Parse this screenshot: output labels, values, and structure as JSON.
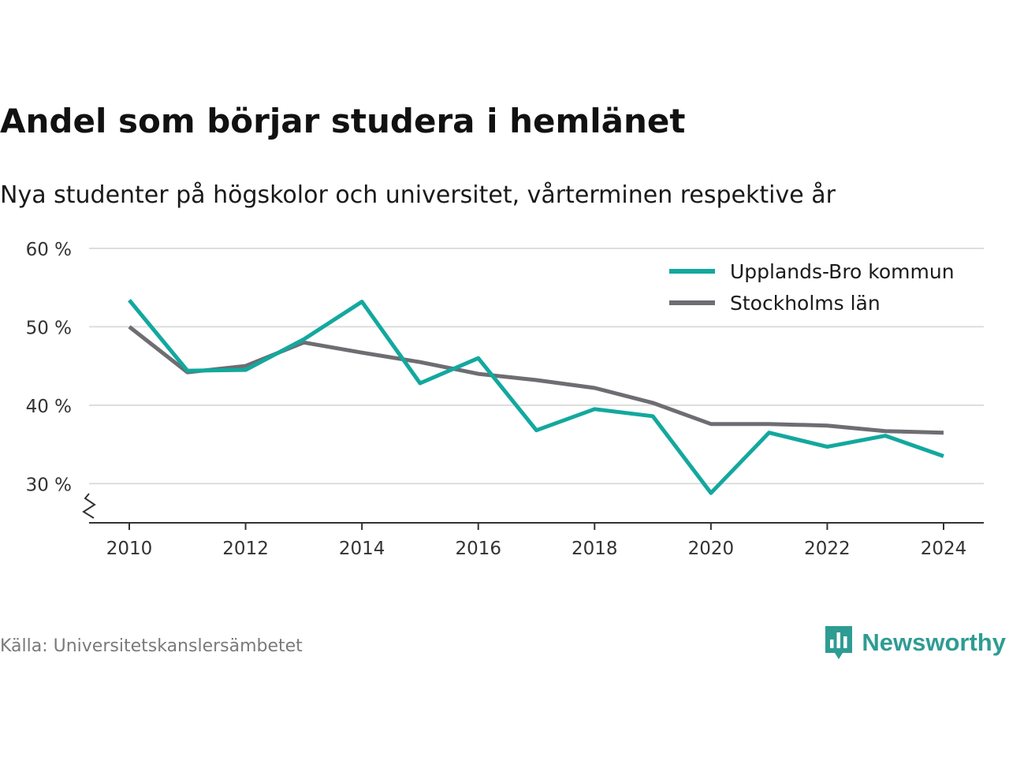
{
  "title": "Andel som börjar studera i hemlänet",
  "subtitle": "Nya studenter på högskolor och universitet, vårterminen respektive år",
  "source": "Källa: Universitetskanslersämbetet",
  "brand": {
    "name": "Newsworthy",
    "icon": "newsworthy-logo-icon",
    "color": "#2e9c93"
  },
  "colors": {
    "grid": "#dddddd",
    "axis": "#333333",
    "tick_label": "#333333"
  },
  "chart_data": {
    "type": "line",
    "x": [
      2010,
      2011,
      2012,
      2013,
      2014,
      2015,
      2016,
      2017,
      2018,
      2019,
      2020,
      2021,
      2022,
      2023,
      2024
    ],
    "x_ticks": [
      2010,
      2012,
      2014,
      2016,
      2018,
      2020,
      2022,
      2024
    ],
    "x_tick_labels": [
      "2010",
      "2012",
      "2014",
      "2016",
      "2018",
      "2020",
      "2022",
      "2024"
    ],
    "xlim": [
      2010,
      2024
    ],
    "y_ticks": [
      30,
      40,
      50,
      60
    ],
    "y_tick_labels": [
      "30 %",
      "40 %",
      "50 %",
      "60 %"
    ],
    "ylim": [
      25,
      60
    ],
    "y_axis_break": true,
    "grid": "horizontal",
    "legend_position": "top-right",
    "series": [
      {
        "name": "Upplands-Bro kommun",
        "color": "#13a89e",
        "values": [
          53.4,
          44.4,
          44.5,
          48.4,
          53.2,
          42.8,
          46.0,
          36.8,
          39.5,
          38.6,
          28.8,
          36.5,
          34.7,
          36.1,
          33.5
        ]
      },
      {
        "name": "Stockholms län",
        "color": "#6d6d72",
        "values": [
          50.0,
          44.2,
          45.0,
          48.0,
          46.7,
          45.5,
          44.0,
          43.2,
          42.2,
          40.3,
          37.6,
          37.6,
          37.4,
          36.7,
          36.5
        ]
      }
    ]
  }
}
